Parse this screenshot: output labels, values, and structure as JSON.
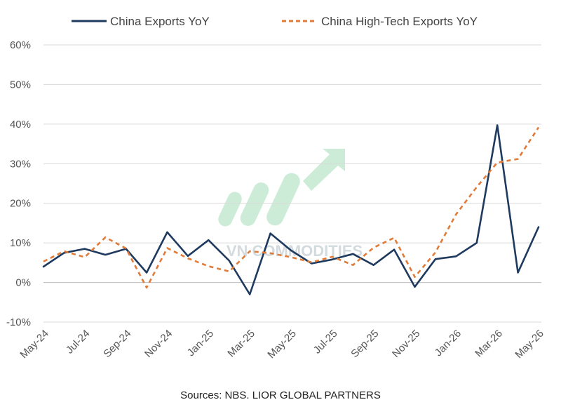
{
  "chart_data": {
    "type": "line",
    "title": "",
    "xlabel": "",
    "ylabel": "",
    "ylim": [
      -10,
      60
    ],
    "y_ticks": [
      -10,
      0,
      10,
      20,
      30,
      40,
      50,
      60
    ],
    "y_tick_format": "percent",
    "grid": "horizontal",
    "legend_position": "top",
    "source": "Sources: NBS. LIOR GLOBAL PARTNERS",
    "watermark": "VN COMMODITIES",
    "x_tick_labels": [
      "May-24",
      "Jul-24",
      "Sep-24",
      "Nov-24",
      "Jan-25",
      "Mar-25",
      "May-25",
      "Jul-25",
      "Sep-25",
      "Nov-25",
      "Jan-26",
      "Mar-26",
      "May-26"
    ],
    "x": [
      "May-24",
      "Jun-24",
      "Jul-24",
      "Aug-24",
      "Sep-24",
      "Oct-24",
      "Nov-24",
      "Dec-24",
      "Jan-25",
      "Feb-25",
      "Mar-25",
      "Apr-25",
      "May-25",
      "Jun-25",
      "Jul-25",
      "Aug-25",
      "Sep-25",
      "Oct-25",
      "Nov-25",
      "Dec-25",
      "Jan-26",
      "Feb-26",
      "Mar-26",
      "Apr-26",
      "May-26"
    ],
    "series": [
      {
        "name": "China Exports YoY",
        "color": "#1f3a5f",
        "style": "solid",
        "values": [
          4.0,
          7.5,
          8.5,
          7.0,
          8.5,
          2.5,
          12.7,
          6.7,
          10.7,
          5.5,
          -3.0,
          12.4,
          8.1,
          4.8,
          5.8,
          7.2,
          4.4,
          8.3,
          -1.1,
          5.9,
          6.6,
          10.0,
          39.7,
          2.5,
          14.0
        ]
      },
      {
        "name": "China High-Tech Exports YoY",
        "color": "#e07b39",
        "style": "dashed",
        "values": [
          5.3,
          7.9,
          6.4,
          11.4,
          8.6,
          -1.3,
          8.7,
          6.1,
          4.1,
          2.8,
          7.9,
          7.4,
          6.4,
          5.1,
          6.5,
          4.4,
          8.8,
          11.3,
          1.4,
          7.6,
          17.2,
          24.1,
          30.3,
          31.2,
          39.2
        ]
      }
    ]
  }
}
